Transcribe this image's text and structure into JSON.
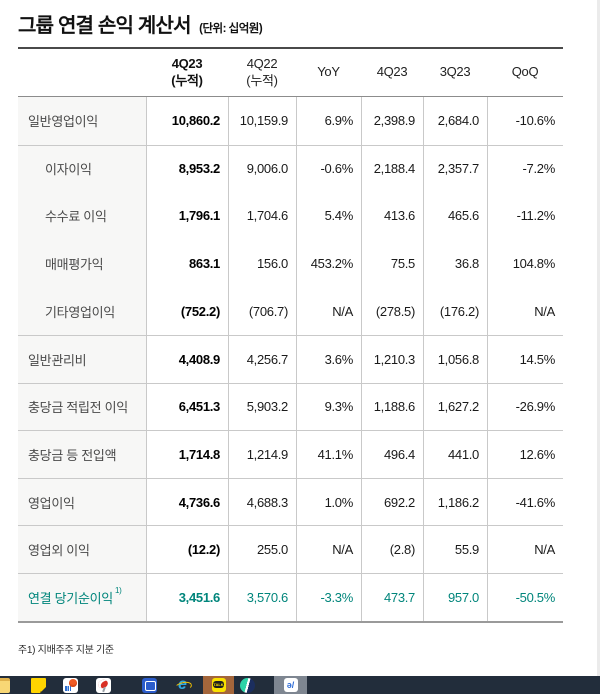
{
  "title": {
    "text": "그룹 연결 손익 계산서",
    "unit": "(단위: 십억원)"
  },
  "table": {
    "columns": [
      {
        "line1": "4Q23",
        "line2": "(누적)",
        "bold": true
      },
      {
        "line1": "4Q22",
        "line2": "(누적)",
        "bold": false
      },
      {
        "line1": "YoY",
        "line2": "",
        "bold": false
      },
      {
        "line1": "4Q23",
        "line2": "",
        "bold": false
      },
      {
        "line1": "3Q23",
        "line2": "",
        "bold": false
      },
      {
        "line1": "QoQ",
        "line2": "",
        "bold": false
      }
    ],
    "rows": [
      {
        "label": "일반영업이익",
        "indent": false,
        "separator": false,
        "accent": false,
        "values": [
          "10,860.2",
          "10,159.9",
          "6.9%",
          "2,398.9",
          "2,684.0",
          "-10.6%"
        ]
      },
      {
        "label": "이자이익",
        "indent": true,
        "separator": true,
        "accent": false,
        "values": [
          "8,953.2",
          "9,006.0",
          "-0.6%",
          "2,188.4",
          "2,357.7",
          "-7.2%"
        ]
      },
      {
        "label": "수수료 이익",
        "indent": true,
        "separator": false,
        "accent": false,
        "values": [
          "1,796.1",
          "1,704.6",
          "5.4%",
          "413.6",
          "465.6",
          "-11.2%"
        ]
      },
      {
        "label": "매매평가익",
        "indent": true,
        "separator": false,
        "accent": false,
        "values": [
          "863.1",
          "156.0",
          "453.2%",
          "75.5",
          "36.8",
          "104.8%"
        ]
      },
      {
        "label": "기타영업이익",
        "indent": true,
        "separator": false,
        "accent": false,
        "values": [
          "(752.2)",
          "(706.7)",
          "N/A",
          "(278.5)",
          "(176.2)",
          "N/A"
        ]
      },
      {
        "label": "일반관리비",
        "indent": false,
        "separator": true,
        "accent": false,
        "values": [
          "4,408.9",
          "4,256.7",
          "3.6%",
          "1,210.3",
          "1,056.8",
          "14.5%"
        ]
      },
      {
        "label": "충당금 적립전 이익",
        "indent": false,
        "separator": true,
        "accent": false,
        "values": [
          "6,451.3",
          "5,903.2",
          "9.3%",
          "1,188.6",
          "1,627.2",
          "-26.9%"
        ]
      },
      {
        "label": "충당금 등 전입액",
        "indent": false,
        "separator": true,
        "accent": false,
        "values": [
          "1,714.8",
          "1,214.9",
          "41.1%",
          "496.4",
          "441.0",
          "12.6%"
        ]
      },
      {
        "label": "영업이익",
        "indent": false,
        "separator": true,
        "accent": false,
        "values": [
          "4,736.6",
          "4,688.3",
          "1.0%",
          "692.2",
          "1,186.2",
          "-41.6%"
        ]
      },
      {
        "label": "영업외 이익",
        "indent": false,
        "separator": true,
        "accent": false,
        "values": [
          "(12.2)",
          "255.0",
          "N/A",
          "(2.8)",
          "55.9",
          "N/A"
        ]
      },
      {
        "label": "연결 당기순이익",
        "sup": "1)",
        "indent": false,
        "separator": true,
        "accent": true,
        "values": [
          "3,451.6",
          "3,570.6",
          "-3.3%",
          "473.7",
          "957.0",
          "-50.5%"
        ]
      }
    ]
  },
  "footnote": "주1) 지배주주 지분 기준",
  "taskbar": {
    "kakao_text": "TALK",
    "ie_glyph": "e",
    "hwp_glyph": "ǝ/",
    "icons": [
      "folder-icon",
      "sticky-note-icon",
      "chat-chart-app-icon",
      "satellite-dish-icon",
      "blue-app-icon",
      "internet-explorer-icon",
      "kakaotalk-icon",
      "whale-browser-icon",
      "hwp-icon"
    ]
  },
  "colors": {
    "accent_teal": "#00857b",
    "taskbar_bg": "#222d3b",
    "kakao_tile": "#a4663b",
    "hwp_tile": "#7e8691",
    "label_col_bg": "#f7f7f6"
  }
}
